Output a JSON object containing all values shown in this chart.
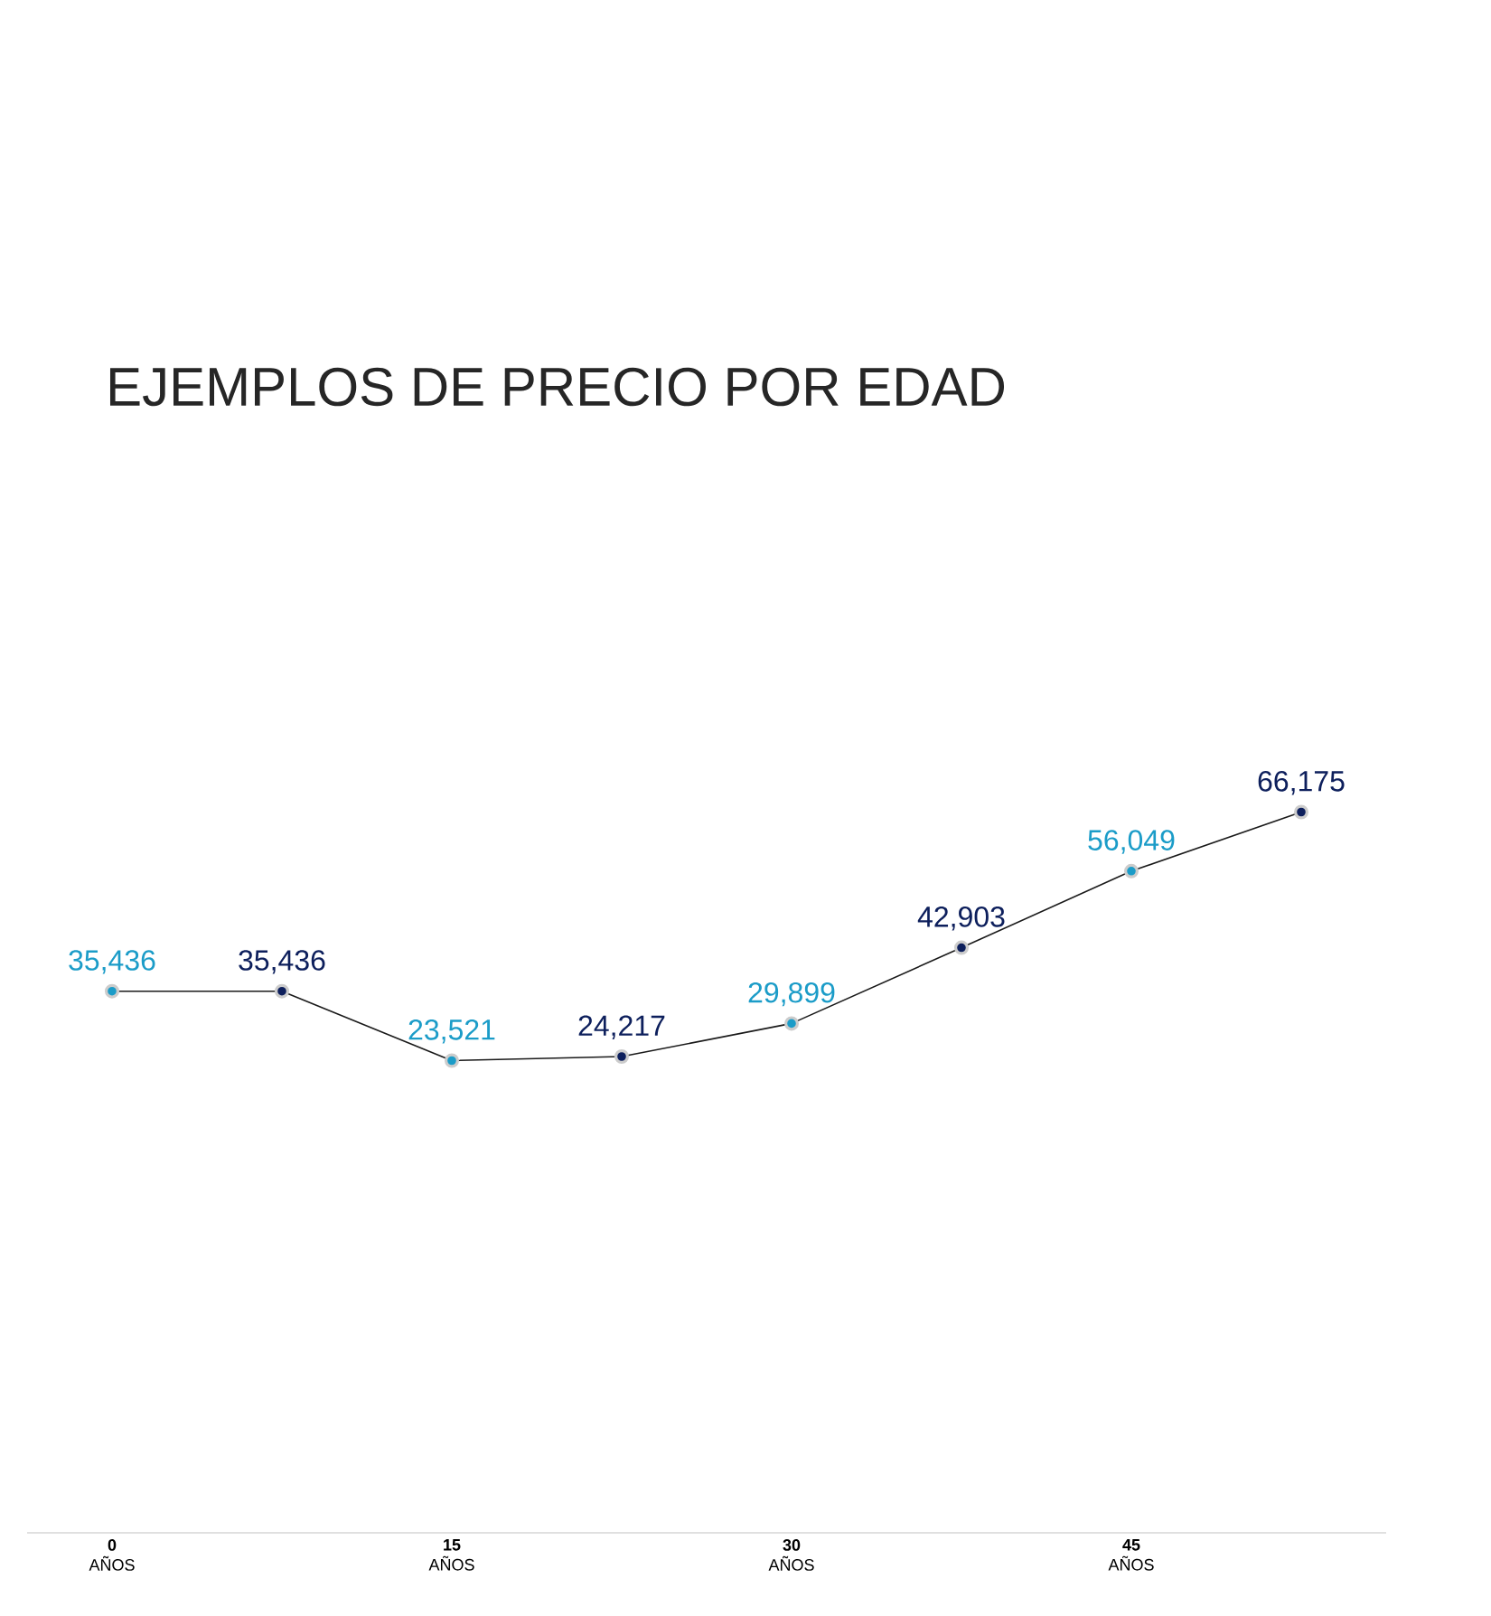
{
  "chart_data": {
    "type": "line",
    "title": "EJEMPLOS DE PRECIO POR EDAD",
    "categories": [
      "**0** AÑOS",
      null,
      "**15** AÑOS",
      null,
      "**30** AÑOS",
      null,
      "**45** AÑOS",
      null
    ],
    "series": [
      {
        "color": "#1a1a1a",
        "colors": [
          "#1b9cc8",
          "#0d1f5c",
          "#1b9cc8",
          "#0d1f5c",
          "#1b9cc8",
          "#0d1f5c",
          "#1b9cc8",
          "#0d1f5c"
        ],
        "values": [
          35436,
          35436,
          23521,
          24217,
          29899,
          42903,
          56049,
          66175
        ],
        "value_labels": [
          "35,436",
          "35,436",
          "23,521",
          "24,217",
          "29,899",
          "42,903",
          "56,049",
          "66,175"
        ]
      }
    ],
    "marker": "circle",
    "line_style": "solid"
  }
}
